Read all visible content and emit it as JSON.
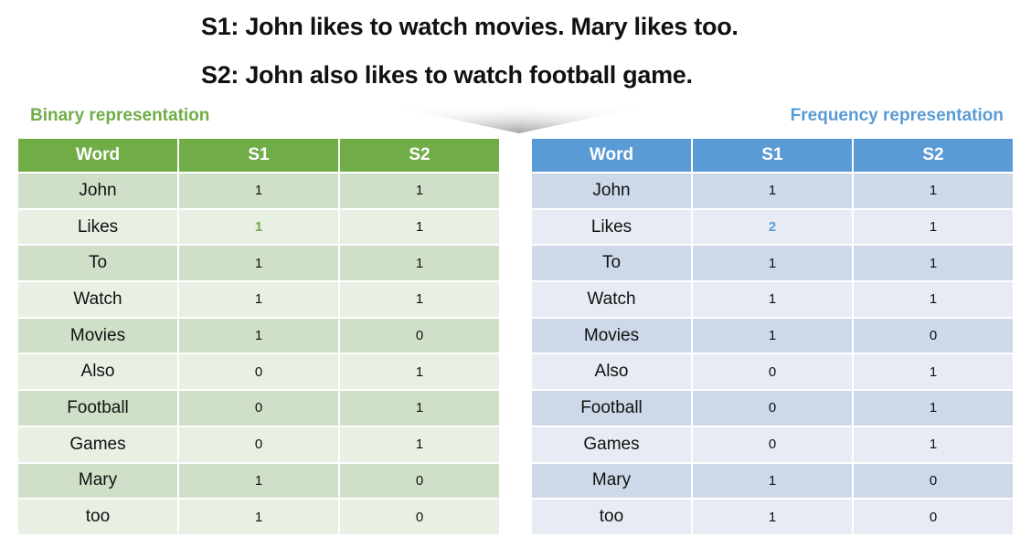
{
  "sentences": {
    "s1": "S1: John likes to watch movies. Mary likes too.",
    "s2": "S2: John also likes to watch football game."
  },
  "binary": {
    "label": "Binary representation",
    "headers": [
      "Word",
      "S1",
      "S2"
    ],
    "rows": [
      [
        "John",
        "1",
        "1"
      ],
      [
        "Likes",
        "1",
        "1"
      ],
      [
        "To",
        "1",
        "1"
      ],
      [
        "Watch",
        "1",
        "1"
      ],
      [
        "Movies",
        "1",
        "0"
      ],
      [
        "Also",
        "0",
        "1"
      ],
      [
        "Football",
        "0",
        "1"
      ],
      [
        "Games",
        "0",
        "1"
      ],
      [
        "Mary",
        "1",
        "0"
      ],
      [
        "too",
        "1",
        "0"
      ]
    ],
    "header_color": "#70ad47",
    "highlight": {
      "row": 1,
      "col": 1,
      "color": "#70ad47"
    }
  },
  "frequency": {
    "label": "Frequency representation",
    "headers": [
      "Word",
      "S1",
      "S2"
    ],
    "rows": [
      [
        "John",
        "1",
        "1"
      ],
      [
        "Likes",
        "2",
        "1"
      ],
      [
        "To",
        "1",
        "1"
      ],
      [
        "Watch",
        "1",
        "1"
      ],
      [
        "Movies",
        "1",
        "0"
      ],
      [
        "Also",
        "0",
        "1"
      ],
      [
        "Football",
        "0",
        "1"
      ],
      [
        "Games",
        "0",
        "1"
      ],
      [
        "Mary",
        "1",
        "0"
      ],
      [
        "too",
        "1",
        "0"
      ]
    ],
    "header_color": "#5b9bd5",
    "highlight": {
      "row": 1,
      "col": 1,
      "color": "#5b9bd5"
    }
  }
}
